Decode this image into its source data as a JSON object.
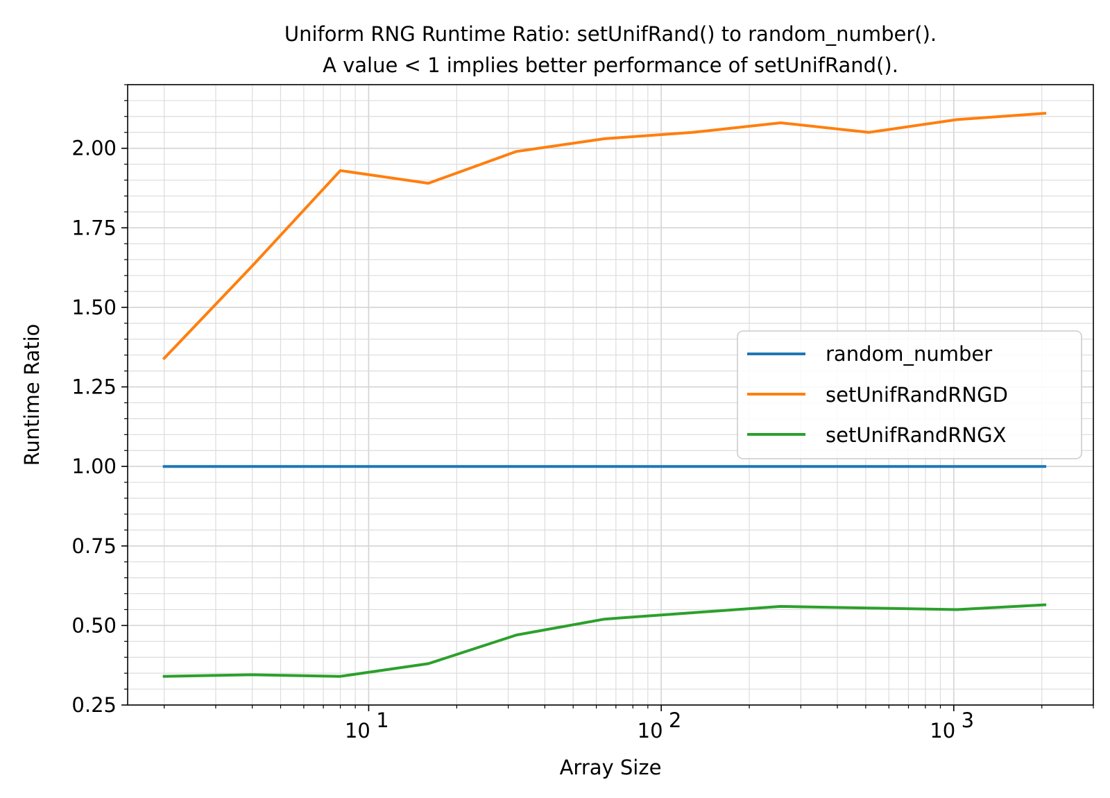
{
  "chart_data": {
    "type": "line",
    "title": [
      "Uniform RNG Runtime Ratio: setUnifRand() to random_number().",
      "A value < 1 implies better performance of setUnifRand()."
    ],
    "xlabel": "Array Size",
    "ylabel": "Runtime Ratio",
    "xscale": "log",
    "xlim": [
      1.5,
      3000
    ],
    "ylim": [
      0.25,
      2.2
    ],
    "x_ticks": [
      {
        "value": 10,
        "base": "10",
        "exp": "1"
      },
      {
        "value": 100,
        "base": "10",
        "exp": "2"
      },
      {
        "value": 1000,
        "base": "10",
        "exp": "3"
      }
    ],
    "y_ticks": [
      0.25,
      0.5,
      0.75,
      1.0,
      1.25,
      1.5,
      1.75,
      2.0
    ],
    "y_tick_labels": [
      "0.25",
      "0.50",
      "0.75",
      "1.00",
      "1.25",
      "1.50",
      "1.75",
      "2.00"
    ],
    "grid": "major and minor",
    "legend_position": "center-right",
    "x": [
      2,
      4,
      8,
      16,
      32,
      64,
      128,
      256,
      512,
      1024,
      2048
    ],
    "series": [
      {
        "name": "random_number",
        "color": "#1f77b4",
        "values": [
          1.0,
          1.0,
          1.0,
          1.0,
          1.0,
          1.0,
          1.0,
          1.0,
          1.0,
          1.0,
          1.0
        ]
      },
      {
        "name": "setUnifRandRNGD",
        "color": "#ff7f0e",
        "values": [
          1.34,
          1.63,
          1.93,
          1.89,
          1.99,
          2.03,
          2.05,
          2.08,
          2.05,
          2.09,
          2.11
        ]
      },
      {
        "name": "setUnifRandRNGX",
        "color": "#2ca02c",
        "values": [
          0.34,
          0.345,
          0.34,
          0.38,
          0.47,
          0.52,
          0.54,
          0.56,
          0.555,
          0.55,
          0.565
        ]
      }
    ]
  }
}
